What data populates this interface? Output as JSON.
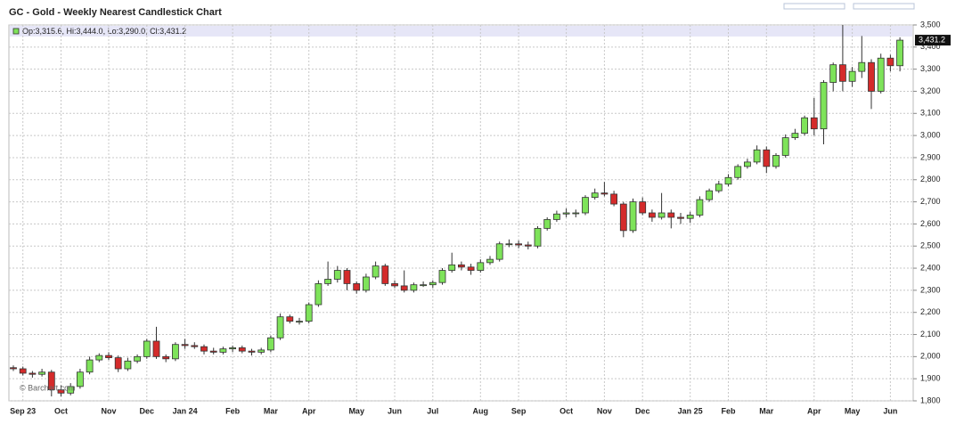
{
  "chart_data": {
    "type": "candlestick",
    "title": "GC - Gold - Weekly Nearest Candlestick Chart",
    "legend_text": "Op:3,315.6, Hi:3,444.0, Lo:3,290.0, Cl:3,431.2",
    "watermark": "© Barchart.com",
    "up_color": "#7ee35a",
    "down_color": "#d42b2b",
    "grid": true,
    "last_label": {
      "value": 3431.2,
      "label": "3,431.2"
    },
    "categories": [
      null,
      "Sep 23",
      null,
      null,
      null,
      "Oct",
      null,
      null,
      null,
      null,
      "Nov",
      null,
      null,
      null,
      "Dec",
      null,
      null,
      null,
      "Jan 24",
      null,
      null,
      null,
      null,
      "Feb",
      null,
      null,
      null,
      "Mar",
      null,
      null,
      null,
      "Apr",
      null,
      null,
      null,
      null,
      "May",
      null,
      null,
      null,
      "Jun",
      null,
      null,
      null,
      "Jul",
      null,
      null,
      null,
      null,
      "Aug",
      null,
      null,
      null,
      "Sep",
      null,
      null,
      null,
      null,
      "Oct",
      null,
      null,
      null,
      "Nov",
      null,
      null,
      null,
      "Dec",
      null,
      null,
      null,
      null,
      "Jan 25",
      null,
      null,
      null,
      "Feb",
      null,
      null,
      null,
      "Mar",
      null,
      null,
      null,
      null,
      "Apr",
      null,
      null,
      null,
      "May",
      null,
      null,
      null,
      "Jun",
      null
    ],
    "open": [
      1950,
      1945,
      1925,
      1920,
      1930,
      1850,
      1835,
      1865,
      1930,
      1985,
      2005,
      1995,
      1945,
      1980,
      2000,
      2070,
      2000,
      1990,
      2055,
      2050,
      2045,
      2025,
      2020,
      2035,
      2040,
      2025,
      2020,
      2030,
      2085,
      2180,
      2160,
      2160,
      2235,
      2330,
      2350,
      2390,
      2330,
      2300,
      2360,
      2410,
      2330,
      2320,
      2300,
      2325,
      2325,
      2335,
      2390,
      2415,
      2405,
      2390,
      2425,
      2440,
      2510,
      2510,
      2505,
      2500,
      2580,
      2620,
      2645,
      2650,
      2650,
      2720,
      2740,
      2735,
      2690,
      2570,
      2700,
      2650,
      2630,
      2650,
      2630,
      2625,
      2640,
      2710,
      2750,
      2780,
      2810,
      2860,
      2880,
      2935,
      2860,
      2910,
      2990,
      3010,
      3080,
      3030,
      3240,
      3320,
      3245,
      3290,
      3330,
      3200,
      3350,
      3315.6
    ],
    "high": [
      1960,
      1955,
      1935,
      1945,
      1940,
      1870,
      1880,
      1945,
      2000,
      2015,
      2020,
      2005,
      1995,
      2010,
      2080,
      2135,
      2010,
      2065,
      2080,
      2065,
      2055,
      2040,
      2045,
      2050,
      2050,
      2035,
      2040,
      2095,
      2195,
      2190,
      2175,
      2245,
      2345,
      2430,
      2410,
      2400,
      2340,
      2375,
      2430,
      2420,
      2345,
      2390,
      2335,
      2340,
      2345,
      2400,
      2470,
      2430,
      2420,
      2440,
      2455,
      2520,
      2530,
      2525,
      2520,
      2590,
      2630,
      2660,
      2670,
      2665,
      2730,
      2760,
      2790,
      2750,
      2700,
      2715,
      2720,
      2665,
      2740,
      2665,
      2650,
      2655,
      2725,
      2760,
      2795,
      2825,
      2870,
      2895,
      2955,
      2950,
      2920,
      3005,
      3030,
      3090,
      3170,
      3250,
      3330,
      3500,
      3310,
      3450,
      3345,
      3370,
      3365,
      3444
    ],
    "low": [
      1935,
      1915,
      1905,
      1910,
      1820,
      1820,
      1825,
      1855,
      1920,
      1975,
      1985,
      1930,
      1935,
      1970,
      1990,
      1990,
      1975,
      1980,
      2035,
      2035,
      2010,
      2010,
      2010,
      2020,
      2015,
      2005,
      2010,
      2020,
      2075,
      2150,
      2145,
      2150,
      2225,
      2320,
      2335,
      2300,
      2285,
      2290,
      2350,
      2320,
      2310,
      2290,
      2290,
      2315,
      2310,
      2325,
      2380,
      2390,
      2370,
      2380,
      2415,
      2430,
      2495,
      2490,
      2485,
      2490,
      2570,
      2610,
      2630,
      2630,
      2640,
      2710,
      2725,
      2680,
      2540,
      2560,
      2640,
      2610,
      2620,
      2580,
      2600,
      2605,
      2630,
      2700,
      2740,
      2770,
      2800,
      2850,
      2870,
      2830,
      2850,
      2900,
      2980,
      3000,
      3000,
      2960,
      3200,
      3200,
      3220,
      3260,
      3120,
      3190,
      3290,
      3290
    ],
    "close": [
      1945,
      1925,
      1920,
      1930,
      1850,
      1835,
      1865,
      1930,
      1985,
      2005,
      1995,
      1945,
      1980,
      2000,
      2070,
      2000,
      1990,
      2055,
      2050,
      2045,
      2025,
      2020,
      2035,
      2040,
      2025,
      2020,
      2030,
      2085,
      2180,
      2160,
      2160,
      2235,
      2330,
      2350,
      2390,
      2330,
      2300,
      2360,
      2410,
      2330,
      2320,
      2300,
      2325,
      2325,
      2335,
      2390,
      2415,
      2405,
      2390,
      2425,
      2440,
      2510,
      2510,
      2505,
      2500,
      2580,
      2620,
      2645,
      2650,
      2650,
      2720,
      2740,
      2735,
      2690,
      2570,
      2700,
      2650,
      2630,
      2650,
      2630,
      2625,
      2640,
      2710,
      2750,
      2780,
      2810,
      2860,
      2880,
      2935,
      2860,
      2910,
      2990,
      3010,
      3080,
      3030,
      3240,
      3320,
      3245,
      3290,
      3330,
      3200,
      3350,
      3315.6,
      3431.2
    ],
    "ylim": [
      1800,
      3500
    ],
    "yticks": [
      {
        "value": 1800,
        "label": "1,800"
      },
      {
        "value": 1900,
        "label": "1,900"
      },
      {
        "value": 2000,
        "label": "2,000"
      },
      {
        "value": 2100,
        "label": "2,100"
      },
      {
        "value": 2200,
        "label": "2,200"
      },
      {
        "value": 2300,
        "label": "2,300"
      },
      {
        "value": 2400,
        "label": "2,400"
      },
      {
        "value": 2500,
        "label": "2,500"
      },
      {
        "value": 2600,
        "label": "2,600"
      },
      {
        "value": 2700,
        "label": "2,700"
      },
      {
        "value": 2800,
        "label": "2,800"
      },
      {
        "value": 2900,
        "label": "2,900"
      },
      {
        "value": 3000,
        "label": "3,000"
      },
      {
        "value": 3100,
        "label": "3,100"
      },
      {
        "value": 3200,
        "label": "3,200"
      },
      {
        "value": 3300,
        "label": "3,300"
      },
      {
        "value": 3400,
        "label": "3,400"
      },
      {
        "value": 3500,
        "label": "3,500"
      }
    ]
  }
}
